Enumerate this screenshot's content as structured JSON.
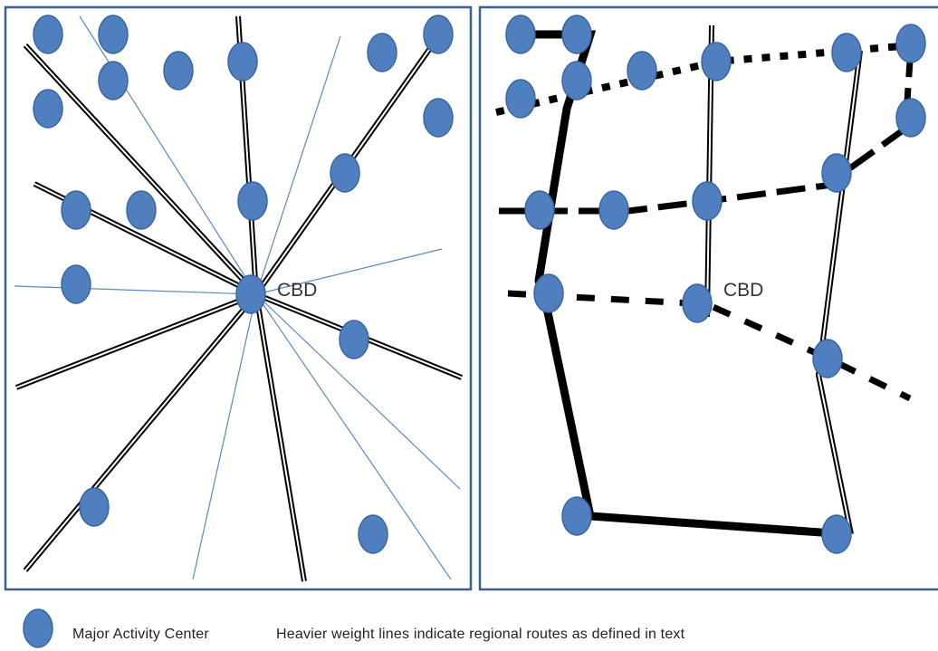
{
  "diagram": {
    "left_panel": {
      "center_label": "CBD"
    },
    "right_panel": {
      "center_label": "CBD"
    }
  },
  "legend": {
    "item_label": "Major Activity Center",
    "note": "Heavier weight lines indicate regional routes as defined in text"
  },
  "colors": {
    "activity_center": "#4f7fbf",
    "activity_center_outline": "#3a669f",
    "frame": "#3d5f8f",
    "thin_route": "#5a88c4",
    "route": "#000000"
  }
}
